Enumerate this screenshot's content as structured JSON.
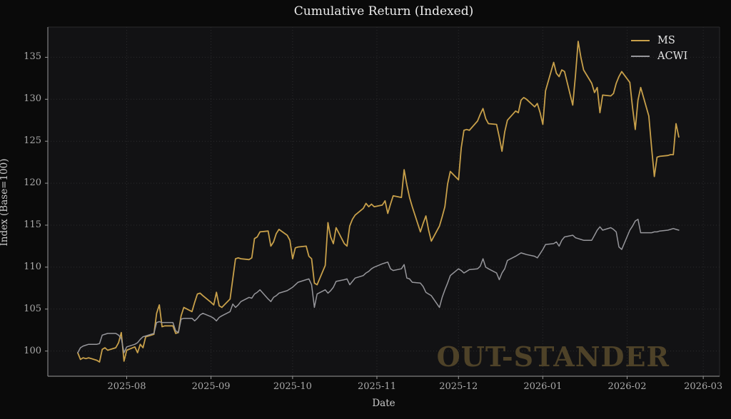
{
  "title": "Cumulative Return (Indexed)",
  "axes": {
    "x_label": "Date",
    "y_label": "Index (Base=100)",
    "y_ticks": [
      100,
      105,
      110,
      115,
      120,
      125,
      130,
      135
    ],
    "x_ticks": [
      {
        "label": "2025-08",
        "day": 18
      },
      {
        "label": "2025-09",
        "day": 49
      },
      {
        "label": "2025-10",
        "day": 79
      },
      {
        "label": "2025-11",
        "day": 110
      },
      {
        "label": "2025-12",
        "day": 140
      },
      {
        "label": "2026-01",
        "day": 171
      },
      {
        "label": "2026-02",
        "day": 202
      },
      {
        "label": "2026-03",
        "day": 230
      }
    ]
  },
  "legend": {
    "items": [
      {
        "label": "MS",
        "color": "#C8A04A"
      },
      {
        "label": "ACWI",
        "color": "#96969B"
      }
    ]
  },
  "watermark": {
    "text": "OUT-STANDER",
    "color": "#4E4228"
  },
  "colors": {
    "background": "#0a0a0a",
    "plot_background": "#121214",
    "grid": "#2c2c2e",
    "spine": "#9a9a9a",
    "tick_label": "#a9a9a9",
    "title_text": "#ededed"
  },
  "chart_data": {
    "type": "line",
    "title": "Cumulative Return (Indexed)",
    "xlabel": "Date",
    "ylabel": "Index (Base=100)",
    "x_start_date": "2025-07-14",
    "x_end_date": "2026-02-20",
    "frequency": "business-daily",
    "ylim": [
      97,
      138.6
    ],
    "xlim_day_offsets": [
      -11,
      236
    ],
    "grid": "dotted",
    "legend_position": "upper right",
    "y_ticks": [
      100,
      105,
      110,
      115,
      120,
      125,
      130,
      135
    ],
    "x_tick_labels": [
      "2025-08",
      "2025-09",
      "2025-10",
      "2025-11",
      "2025-12",
      "2026-01",
      "2026-02",
      "2026-03"
    ],
    "x_tick_day_offsets": [
      18,
      49,
      79,
      110,
      140,
      171,
      202,
      230
    ],
    "series": [
      {
        "name": "MS",
        "color": "#C8A04A",
        "values": [
          99.8,
          99.0,
          99.2,
          99.1,
          99.2,
          98.9,
          98.7,
          100.2,
          100.4,
          100.1,
          100.4,
          101.0,
          102.2,
          98.8,
          100.1,
          100.5,
          99.8,
          100.8,
          100.4,
          101.7,
          102.0,
          104.5,
          105.5,
          102.9,
          103.0,
          103.0,
          102.1,
          102.2,
          104.2,
          105.2,
          104.7,
          105.8,
          106.8,
          106.9,
          106.6,
          105.8,
          105.5,
          107.0,
          105.4,
          105.2,
          106.2,
          108.6,
          111.0,
          111.1,
          111.0,
          110.9,
          111.1,
          113.4,
          113.6,
          114.2,
          114.3,
          112.5,
          113.0,
          114.0,
          114.5,
          113.8,
          113.2,
          111.0,
          112.3,
          112.4,
          112.5,
          111.3,
          111.0,
          108.1,
          107.9,
          110.2,
          115.3,
          113.6,
          112.8,
          114.7,
          112.8,
          112.5,
          114.9,
          115.7,
          116.2,
          117.0,
          117.6,
          117.2,
          117.5,
          117.2,
          117.4,
          117.9,
          116.4,
          117.5,
          118.5,
          118.3,
          121.6,
          119.8,
          118.3,
          117.2,
          114.2,
          115.2,
          116.1,
          114.4,
          113.1,
          114.9,
          116.0,
          117.2,
          119.9,
          121.4,
          120.4,
          124.2,
          126.3,
          126.4,
          126.3,
          127.4,
          128.2,
          128.9,
          127.7,
          127.1,
          127.0,
          125.5,
          123.8,
          126.1,
          127.5,
          128.6,
          128.4,
          129.9,
          130.2,
          130.0,
          129.1,
          129.5,
          128.4,
          127.0,
          131.0,
          134.4,
          133.1,
          132.7,
          133.5,
          133.3,
          129.3,
          132.8,
          136.9,
          135.0,
          133.5,
          131.9,
          130.8,
          131.4,
          128.4,
          130.5,
          130.4,
          130.7,
          131.9,
          132.7,
          133.3,
          132.0,
          129.0,
          126.4,
          129.9,
          131.4,
          128.0,
          124.2,
          120.8,
          123.1,
          123.2,
          123.3,
          123.4,
          123.4,
          127.1,
          125.5
        ]
      },
      {
        "name": "ACWI",
        "color": "#96969B",
        "values": [
          99.8,
          100.4,
          100.6,
          100.7,
          100.8,
          100.8,
          100.9,
          101.9,
          102.0,
          102.1,
          102.1,
          101.9,
          101.5,
          99.8,
          100.5,
          100.8,
          101.0,
          101.4,
          101.7,
          101.8,
          102.1,
          103.4,
          103.5,
          103.4,
          103.4,
          103.4,
          102.4,
          102.2,
          103.8,
          103.9,
          103.9,
          103.6,
          103.9,
          104.3,
          104.5,
          104.1,
          103.9,
          103.6,
          104.0,
          104.2,
          104.7,
          105.6,
          105.2,
          105.5,
          105.9,
          106.4,
          106.3,
          106.8,
          107.0,
          107.3,
          106.2,
          105.9,
          106.4,
          106.6,
          106.9,
          107.2,
          107.4,
          107.6,
          107.9,
          108.2,
          108.5,
          108.6,
          107.9,
          105.2,
          106.8,
          107.3,
          106.9,
          107.2,
          107.6,
          108.3,
          108.5,
          108.6,
          107.9,
          108.3,
          108.7,
          109.0,
          109.3,
          109.5,
          109.8,
          110.0,
          110.4,
          110.5,
          110.6,
          109.8,
          109.6,
          109.8,
          110.3,
          108.7,
          108.6,
          108.2,
          108.1,
          107.7,
          107.0,
          106.8,
          106.6,
          105.2,
          106.4,
          107.3,
          108.1,
          109.0,
          109.8,
          109.6,
          109.3,
          109.5,
          109.7,
          109.8,
          110.1,
          111.0,
          110.0,
          109.8,
          109.3,
          108.5,
          109.3,
          109.8,
          110.8,
          111.3,
          111.5,
          111.7,
          111.6,
          111.5,
          111.3,
          111.1,
          111.6,
          112.1,
          112.7,
          112.8,
          113.0,
          112.5,
          113.2,
          113.6,
          113.8,
          113.5,
          113.4,
          113.3,
          113.2,
          113.2,
          113.8,
          114.4,
          114.8,
          114.4,
          114.7,
          114.5,
          114.2,
          112.4,
          112.1,
          114.4,
          114.9,
          115.5,
          115.7,
          114.1,
          114.1,
          114.1,
          114.2,
          114.2,
          114.3,
          114.4,
          114.5,
          114.6,
          114.5,
          114.4
        ]
      }
    ]
  }
}
